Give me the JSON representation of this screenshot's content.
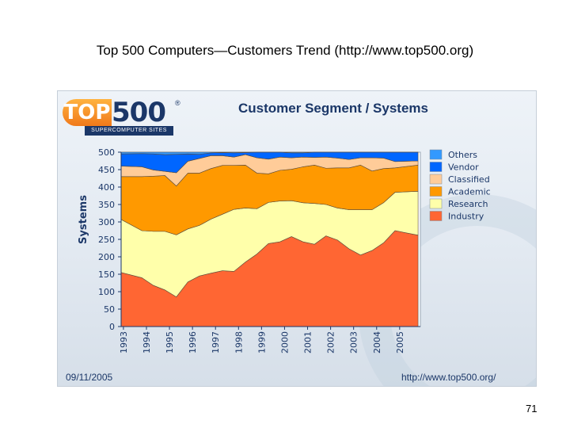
{
  "slide": {
    "title": "Top 500 Computers—Customers Trend (http://www.top500.org)",
    "page_number": "71"
  },
  "logo": {
    "main": "TOP500",
    "reg": "®",
    "subtitle": "SUPERCOMPUTER SITES"
  },
  "footer": {
    "date": "09/11/2005",
    "url": "http://www.top500.org/"
  },
  "chart_data": {
    "type": "area",
    "stacked": true,
    "title": "Customer Segment / Systems",
    "xlabel": "",
    "ylabel": "Systems",
    "ylim": [
      0,
      500
    ],
    "yticks": [
      0,
      50,
      100,
      150,
      200,
      250,
      300,
      350,
      400,
      450,
      500
    ],
    "x": [
      1993.5,
      1993.9,
      1994.4,
      1994.9,
      1995.4,
      1995.9,
      1996.4,
      1996.9,
      1997.4,
      1997.9,
      1998.4,
      1998.9,
      1999.4,
      1999.9,
      2000.4,
      2000.9,
      2001.4,
      2001.9,
      2002.4,
      2002.9,
      2003.4,
      2003.9,
      2004.4,
      2004.9,
      2005.4
    ],
    "xticks": [
      1993,
      1994,
      1995,
      1996,
      1997,
      1998,
      1999,
      2000,
      2001,
      2002,
      2003,
      2004,
      2005
    ],
    "legend_position": "right",
    "series": [
      {
        "name": "Industry",
        "color": "#ff6633",
        "values": [
          155,
          140,
          118,
          105,
          85,
          128,
          145,
          153,
          160,
          158,
          185,
          208,
          238,
          243,
          258,
          243,
          236,
          260,
          248,
          223,
          205,
          218,
          240,
          275,
          262
        ]
      },
      {
        "name": "Research",
        "color": "#ffffaa",
        "values": [
          152,
          135,
          155,
          168,
          178,
          152,
          145,
          155,
          162,
          178,
          155,
          130,
          118,
          117,
          103,
          112,
          117,
          90,
          92,
          112,
          130,
          117,
          115,
          110,
          126
        ]
      },
      {
        "name": "Academic",
        "color": "#ff9900",
        "values": [
          123,
          155,
          158,
          160,
          140,
          160,
          150,
          145,
          140,
          126,
          123,
          102,
          82,
          88,
          90,
          103,
          110,
          104,
          115,
          120,
          128,
          111,
          98,
          70,
          75
        ]
      },
      {
        "name": "Classified",
        "color": "#ffcc99",
        "values": [
          30,
          28,
          18,
          12,
          38,
          34,
          42,
          37,
          28,
          24,
          30,
          44,
          42,
          38,
          33,
          28,
          22,
          32,
          28,
          24,
          21,
          38,
          30,
          18,
          12
        ]
      },
      {
        "name": "Vendor",
        "color": "#0066ff",
        "values": [
          35,
          38,
          46,
          48,
          53,
          21,
          12,
          8,
          9,
          12,
          6,
          16,
          20,
          14,
          14,
          12,
          15,
          14,
          17,
          21,
          16,
          16,
          17,
          27,
          25
        ]
      },
      {
        "name": "Others",
        "color": "#3399ff",
        "values": [
          5,
          4,
          5,
          7,
          6,
          5,
          6,
          2,
          1,
          2,
          1,
          0,
          0,
          0,
          2,
          2,
          0,
          0,
          0,
          0,
          0,
          0,
          0,
          0,
          0
        ]
      }
    ]
  }
}
